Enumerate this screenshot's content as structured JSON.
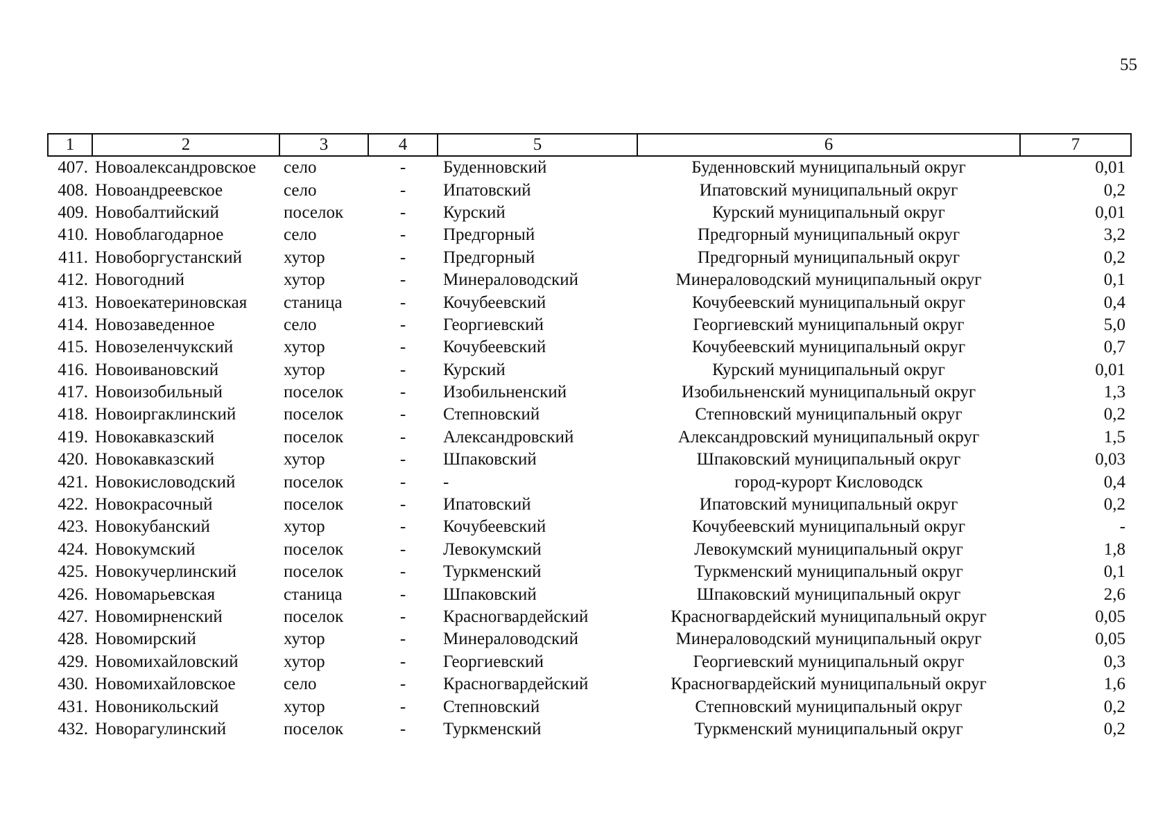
{
  "page_number": "55",
  "header": [
    "1",
    "2",
    "3",
    "4",
    "5",
    "6",
    "7"
  ],
  "rows": [
    {
      "num": "407.",
      "name": "Новоалександровское",
      "type": "село",
      "mark": "-",
      "district": "Буденновский",
      "okrug": "Буденновский муниципальный округ",
      "value": "0,01"
    },
    {
      "num": "408.",
      "name": "Новоандреевское",
      "type": "село",
      "mark": "-",
      "district": "Ипатовский",
      "okrug": "Ипатовский муниципальный округ",
      "value": "0,2"
    },
    {
      "num": "409.",
      "name": "Новобалтийский",
      "type": "поселок",
      "mark": "-",
      "district": "Курский",
      "okrug": "Курский муниципальный округ",
      "value": "0,01"
    },
    {
      "num": "410.",
      "name": "Новоблагодарное",
      "type": "село",
      "mark": "-",
      "district": "Предгорный",
      "okrug": "Предгорный муниципальный округ",
      "value": "3,2"
    },
    {
      "num": "411.",
      "name": "Новоборгустанский",
      "type": "хутор",
      "mark": "-",
      "district": "Предгорный",
      "okrug": "Предгорный муниципальный округ",
      "value": "0,2"
    },
    {
      "num": "412.",
      "name": "Новогодний",
      "type": "хутор",
      "mark": "-",
      "district": "Минераловодский",
      "okrug": "Минераловодский муниципальный округ",
      "value": "0,1"
    },
    {
      "num": "413.",
      "name": "Новоекатериновская",
      "type": "станица",
      "mark": "-",
      "district": "Кочубеевский",
      "okrug": "Кочубеевский муниципальный округ",
      "value": "0,4"
    },
    {
      "num": "414.",
      "name": "Новозаведенное",
      "type": "село",
      "mark": "-",
      "district": "Георгиевский",
      "okrug": "Георгиевский муниципальный округ",
      "value": "5,0"
    },
    {
      "num": "415.",
      "name": "Новозеленчукский",
      "type": "хутор",
      "mark": "-",
      "district": "Кочубеевский",
      "okrug": "Кочубеевский муниципальный округ",
      "value": "0,7"
    },
    {
      "num": "416.",
      "name": "Новоивановский",
      "type": "хутор",
      "mark": "-",
      "district": "Курский",
      "okrug": "Курский муниципальный округ",
      "value": "0,01"
    },
    {
      "num": "417.",
      "name": "Новоизобильный",
      "type": "поселок",
      "mark": "-",
      "district": "Изобильненский",
      "okrug": "Изобильненский муниципальный округ",
      "value": "1,3"
    },
    {
      "num": "418.",
      "name": "Новоиргаклинский",
      "type": "поселок",
      "mark": "-",
      "district": "Степновский",
      "okrug": "Степновский муниципальный округ",
      "value": "0,2"
    },
    {
      "num": "419.",
      "name": "Новокавказский",
      "type": "поселок",
      "mark": "-",
      "district": "Александровский",
      "okrug": "Александровский муниципальный округ",
      "value": "1,5"
    },
    {
      "num": "420.",
      "name": "Новокавказский",
      "type": "хутор",
      "mark": "-",
      "district": "Шпаковский",
      "okrug": "Шпаковский муниципальный округ",
      "value": "0,03"
    },
    {
      "num": "421.",
      "name": "Новокисловодский",
      "type": "поселок",
      "mark": "-",
      "district": "-",
      "okrug": "город-курорт Кисловодск",
      "value": "0,4"
    },
    {
      "num": "422.",
      "name": "Новокрасочный",
      "type": "поселок",
      "mark": "-",
      "district": "Ипатовский",
      "okrug": "Ипатовский муниципальный округ",
      "value": "0,2"
    },
    {
      "num": "423.",
      "name": "Новокубанский",
      "type": "хутор",
      "mark": "-",
      "district": "Кочубеевский",
      "okrug": "Кочубеевский муниципальный округ",
      "value": "-"
    },
    {
      "num": "424.",
      "name": "Новокумский",
      "type": "поселок",
      "mark": "-",
      "district": "Левокумский",
      "okrug": "Левокумский муниципальный округ",
      "value": "1,8"
    },
    {
      "num": "425.",
      "name": "Новокучерлинский",
      "type": "поселок",
      "mark": "-",
      "district": "Туркменский",
      "okrug": "Туркменский муниципальный округ",
      "value": "0,1"
    },
    {
      "num": "426.",
      "name": "Новомарьевская",
      "type": "станица",
      "mark": "-",
      "district": "Шпаковский",
      "okrug": "Шпаковский муниципальный округ",
      "value": "2,6"
    },
    {
      "num": "427.",
      "name": "Новомирненский",
      "type": "поселок",
      "mark": "-",
      "district": "Красногвардейский",
      "okrug": "Красногвардейский муниципальный округ",
      "value": "0,05"
    },
    {
      "num": "428.",
      "name": "Новомирский",
      "type": "хутор",
      "mark": "-",
      "district": "Минераловодский",
      "okrug": "Минераловодский муниципальный округ",
      "value": "0,05"
    },
    {
      "num": "429.",
      "name": "Новомихайловский",
      "type": "хутор",
      "mark": "-",
      "district": "Георгиевский",
      "okrug": "Георгиевский муниципальный округ",
      "value": "0,3"
    },
    {
      "num": "430.",
      "name": "Новомихайловское",
      "type": "село",
      "mark": "-",
      "district": "Красногвардейский",
      "okrug": "Красногвардейский муниципальный округ",
      "value": "1,6"
    },
    {
      "num": "431.",
      "name": "Новоникольский",
      "type": "хутор",
      "mark": "-",
      "district": "Степновский",
      "okrug": "Степновский муниципальный округ",
      "value": "0,2"
    },
    {
      "num": "432.",
      "name": "Новорагулинский",
      "type": "поселок",
      "mark": "-",
      "district": "Туркменский",
      "okrug": "Туркменский муниципальный округ",
      "value": "0,2"
    }
  ]
}
